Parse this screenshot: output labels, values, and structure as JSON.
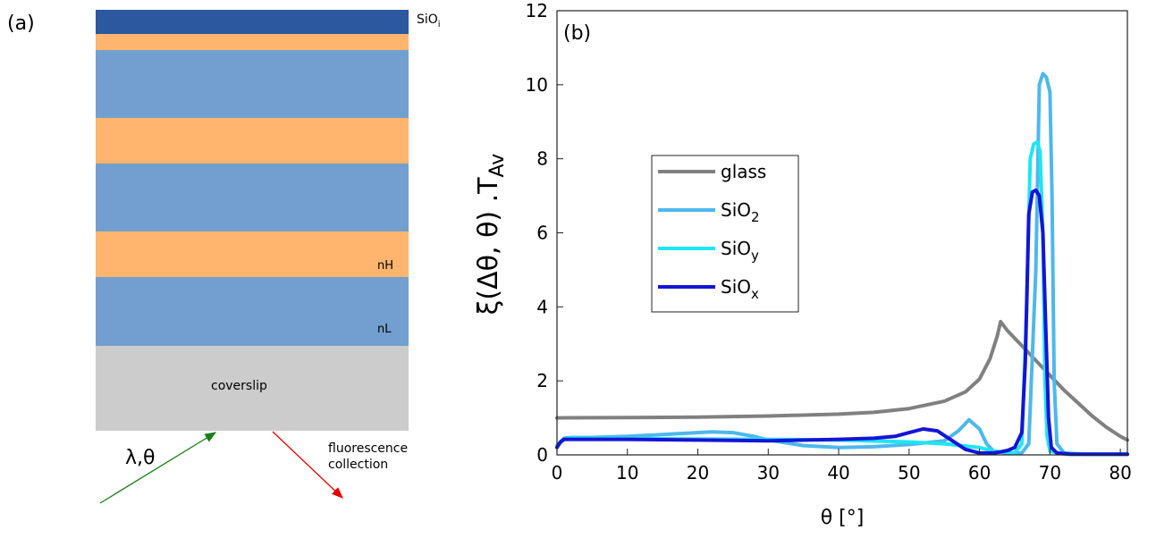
{
  "panel_a": {
    "tag": "(a)",
    "top_layer_label": "SiO",
    "top_layer_sub": "i",
    "nH_label": "nH",
    "nL_label": "nL",
    "coverslip_label": "coverslip",
    "incident_label": "λ,θ",
    "collection_label_line1": "fluorescence",
    "collection_label_line2": "collection",
    "colors": {
      "top_layer": "#2b589e",
      "high_index": "#ffb56e",
      "low_index": "#729fcf",
      "coverslip": "#cccccc",
      "incident_arrow": "#1a7f1a",
      "collection_arrow": "#e60000"
    }
  },
  "chart_data": {
    "type": "line",
    "panel_tag": "(b)",
    "xlabel": "θ [°]",
    "ylabel_main": "ξ(Δθ, θ) .T",
    "ylabel_sub": "Av",
    "xlim": [
      0,
      81
    ],
    "ylim": [
      0,
      12
    ],
    "xticks": [
      0,
      10,
      20,
      30,
      40,
      50,
      60,
      70,
      80
    ],
    "yticks": [
      0,
      2,
      4,
      6,
      8,
      10,
      12
    ],
    "grid": false,
    "legend_position": "center-left",
    "series": [
      {
        "name": "glass",
        "name_sub": "",
        "color": "#808080",
        "x": [
          0,
          10,
          20,
          30,
          40,
          45,
          50,
          55,
          58,
          60,
          61.5,
          62.5,
          63,
          64,
          66,
          68,
          70,
          72,
          74,
          76,
          78,
          80,
          81
        ],
        "y": [
          1.0,
          1.01,
          1.02,
          1.05,
          1.1,
          1.15,
          1.25,
          1.45,
          1.7,
          2.05,
          2.6,
          3.2,
          3.6,
          3.35,
          2.95,
          2.55,
          2.15,
          1.75,
          1.4,
          1.05,
          0.75,
          0.5,
          0.4
        ]
      },
      {
        "name": "SiO",
        "name_sub": "2",
        "color": "#4db8ec",
        "x": [
          0,
          0.5,
          1,
          2,
          5,
          10,
          15,
          20,
          22,
          25,
          28,
          30,
          35,
          40,
          45,
          50,
          55,
          57,
          58.5,
          60,
          61,
          62,
          64,
          66,
          67,
          68,
          68.5,
          69,
          69.5,
          70,
          70.3,
          70.6,
          71,
          72,
          75,
          81
        ],
        "y": [
          0.25,
          0.35,
          0.45,
          0.47,
          0.47,
          0.5,
          0.55,
          0.6,
          0.62,
          0.6,
          0.5,
          0.4,
          0.25,
          0.2,
          0.22,
          0.28,
          0.38,
          0.65,
          0.95,
          0.7,
          0.3,
          0.1,
          0.05,
          0.05,
          0.3,
          5.0,
          10.0,
          10.3,
          10.2,
          9.8,
          7.0,
          2.0,
          0.3,
          0.05,
          0.02,
          0.02
        ]
      },
      {
        "name": "SiO",
        "name_sub": "y",
        "color": "#1de6f2",
        "x": [
          0,
          1,
          2,
          10,
          20,
          30,
          40,
          50,
          55,
          60,
          62,
          65,
          66,
          66.7,
          67.2,
          67.7,
          68.2,
          68.6,
          69,
          69.3,
          69.6,
          70,
          72,
          81
        ],
        "y": [
          0.25,
          0.42,
          0.45,
          0.44,
          0.43,
          0.42,
          0.4,
          0.35,
          0.3,
          0.2,
          0.1,
          0.05,
          0.3,
          4.0,
          8.0,
          8.4,
          8.45,
          8.2,
          6.0,
          2.0,
          0.5,
          0.1,
          0.02,
          0.02
        ]
      },
      {
        "name": "SiO",
        "name_sub": "x",
        "color": "#1414d6",
        "x": [
          0,
          0.5,
          1,
          2,
          10,
          20,
          30,
          40,
          45,
          48,
          50,
          52,
          54,
          56,
          58,
          60,
          62,
          63,
          64,
          65,
          66,
          66.5,
          67,
          67.5,
          68,
          68.5,
          69,
          69.4,
          69.8,
          70.2,
          71,
          73,
          81
        ],
        "y": [
          0.2,
          0.35,
          0.42,
          0.42,
          0.42,
          0.4,
          0.38,
          0.42,
          0.45,
          0.5,
          0.6,
          0.7,
          0.65,
          0.4,
          0.15,
          0.05,
          0.05,
          0.08,
          0.12,
          0.2,
          0.6,
          2.5,
          6.5,
          7.1,
          7.15,
          7.0,
          6.0,
          3.5,
          1.0,
          0.2,
          0.05,
          0.02,
          0.02
        ]
      }
    ]
  }
}
